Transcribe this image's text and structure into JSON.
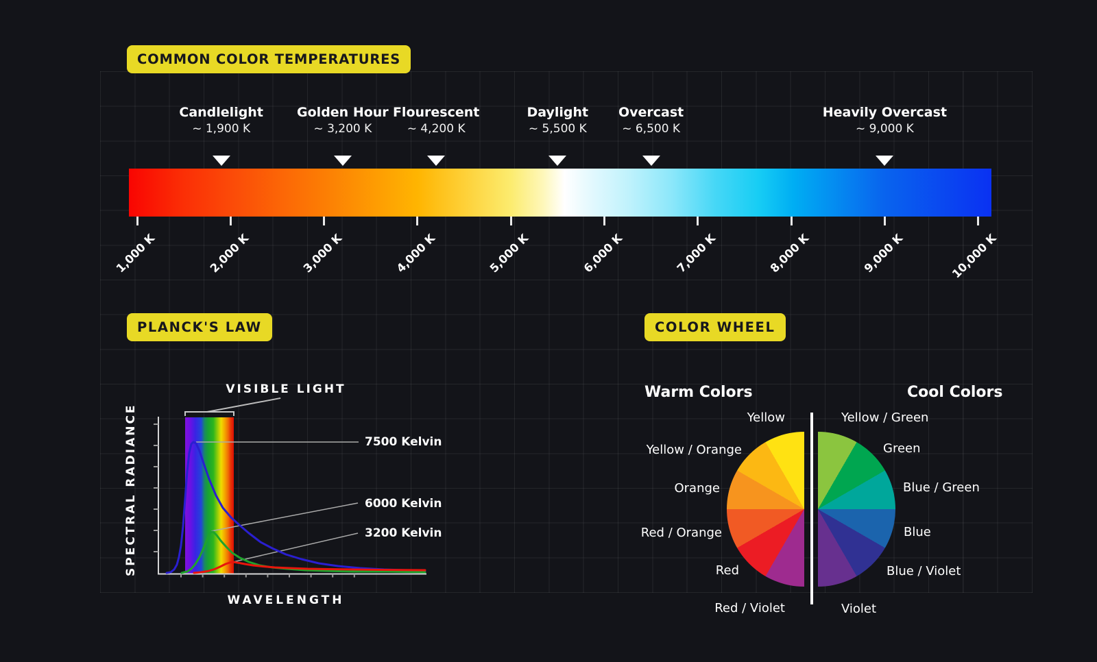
{
  "kelvin_scale": {
    "title": "COMMON COLOR TEMPERATURES",
    "axis_ticks": [
      "1,000 K",
      "2,000 K",
      "3,000 K",
      "4,000 K",
      "5,000 K",
      "6,000 K",
      "7,000 K",
      "8,000 K",
      "9,000 K",
      "10,000 K"
    ],
    "axis_tick_values": [
      1000,
      2000,
      3000,
      4000,
      5000,
      6000,
      7000,
      8000,
      9000,
      10000
    ],
    "markers": [
      {
        "name": "Candlelight",
        "value_label": "~ 1,900 K",
        "kelvin": 1900
      },
      {
        "name": "Golden Hour",
        "value_label": "~ 3,200 K",
        "kelvin": 3200
      },
      {
        "name": "Flourescent",
        "value_label": "~ 4,200 K",
        "kelvin": 4200
      },
      {
        "name": "Daylight",
        "value_label": "~ 5,500 K",
        "kelvin": 5500
      },
      {
        "name": "Overcast",
        "value_label": "~ 6,500 K",
        "kelvin": 6500
      },
      {
        "name": "Heavily Overcast",
        "value_label": "~ 9,000 K",
        "kelvin": 9000
      }
    ],
    "gradient_stops": [
      [
        0,
        "#F90502"
      ],
      [
        6,
        "#FB2D05"
      ],
      [
        11.8,
        "#FB4A08"
      ],
      [
        22.7,
        "#FC7E04"
      ],
      [
        33.5,
        "#FFB501"
      ],
      [
        44.3,
        "#FCEC6F"
      ],
      [
        48,
        "#FEF7B9"
      ],
      [
        50.5,
        "#FFFFFF"
      ],
      [
        53.5,
        "#E4F9FE"
      ],
      [
        58,
        "#BFF2FC"
      ],
      [
        63,
        "#8BE7FA"
      ],
      [
        68,
        "#46D7F6"
      ],
      [
        73,
        "#17CDF4"
      ],
      [
        77,
        "#00AEF3"
      ],
      [
        87.5,
        "#0964EE"
      ],
      [
        100,
        "#0A31F2"
      ]
    ]
  },
  "planck": {
    "title": "PLANCK'S LAW",
    "visible_light_label": "VISIBLE LIGHT",
    "y_axis_label": "SPECTRAL RADIANCE",
    "x_axis_label": "WAVELENGTH",
    "spectrum_stops": [
      [
        0,
        "#7F12DC"
      ],
      [
        10,
        "#6D10E4"
      ],
      [
        21,
        "#3A23E4"
      ],
      [
        33,
        "#2145D8"
      ],
      [
        40,
        "#1A8A60"
      ],
      [
        47,
        "#17A233"
      ],
      [
        58,
        "#2DB51E"
      ],
      [
        66,
        "#8CCB0A"
      ],
      [
        74,
        "#EFDC00"
      ],
      [
        81,
        "#F4A800"
      ],
      [
        88,
        "#F07004"
      ],
      [
        93,
        "#E83A06"
      ],
      [
        100,
        "#DE0D04"
      ]
    ]
  },
  "chart_data": {
    "type": "line",
    "title": "PLANCK'S LAW",
    "xlabel": "WAVELENGTH",
    "ylabel": "SPECTRAL RADIANCE",
    "axes_numeric_labels": false,
    "series": [
      {
        "name": "7500 Kelvin",
        "color": "#2A1FD0",
        "points": [
          [
            28,
            236
          ],
          [
            34,
            235
          ],
          [
            39,
            231
          ],
          [
            43,
            224
          ],
          [
            46,
            213
          ],
          [
            49,
            196
          ],
          [
            52,
            168
          ],
          [
            55,
            128
          ],
          [
            58,
            88
          ],
          [
            61,
            61
          ],
          [
            64,
            48
          ],
          [
            67,
            45
          ],
          [
            71,
            47
          ],
          [
            76,
            58
          ],
          [
            82,
            76
          ],
          [
            90,
            99
          ],
          [
            100,
            123
          ],
          [
            110,
            141
          ],
          [
            122,
            155
          ],
          [
            134,
            166
          ],
          [
            148,
            178
          ],
          [
            165,
            191
          ],
          [
            182,
            200
          ],
          [
            202,
            209
          ],
          [
            225,
            216
          ],
          [
            250,
            222
          ],
          [
            278,
            226
          ],
          [
            310,
            229
          ],
          [
            345,
            231
          ],
          [
            375,
            232
          ],
          [
            405,
            233
          ]
        ]
      },
      {
        "name": "6000 Kelvin",
        "color": "#1FA32C",
        "points": [
          [
            50,
            236
          ],
          [
            58,
            234
          ],
          [
            64,
            230
          ],
          [
            70,
            223
          ],
          [
            76,
            213
          ],
          [
            81,
            202
          ],
          [
            86,
            190
          ],
          [
            90,
            180
          ],
          [
            93,
            176
          ],
          [
            96,
            176
          ],
          [
            101,
            181
          ],
          [
            107,
            189
          ],
          [
            115,
            198
          ],
          [
            124,
            207
          ],
          [
            135,
            214
          ],
          [
            148,
            220
          ],
          [
            164,
            225
          ],
          [
            182,
            228
          ],
          [
            204,
            230
          ],
          [
            230,
            232
          ],
          [
            260,
            233
          ],
          [
            300,
            234
          ],
          [
            350,
            234
          ],
          [
            405,
            235
          ]
        ]
      },
      {
        "name": "3200 Kelvin",
        "color": "#E8150C",
        "points": [
          [
            68,
            236
          ],
          [
            78,
            235
          ],
          [
            88,
            233.5
          ],
          [
            98,
            230.5
          ],
          [
            106,
            227
          ],
          [
            114,
            223
          ],
          [
            120,
            221
          ],
          [
            124,
            220
          ],
          [
            128,
            220.5
          ],
          [
            134,
            221.5
          ],
          [
            142,
            223
          ],
          [
            154,
            225
          ],
          [
            168,
            226.5
          ],
          [
            186,
            228
          ],
          [
            208,
            229
          ],
          [
            234,
            230
          ],
          [
            265,
            230.5
          ],
          [
            300,
            231
          ],
          [
            340,
            231.5
          ],
          [
            405,
            232
          ]
        ]
      }
    ]
  },
  "color_wheel": {
    "title": "COLOR WHEEL",
    "warm_heading": "Warm Colors",
    "cool_heading": "Cool Colors",
    "warm": [
      {
        "label": "Yellow",
        "color": "#FFE212"
      },
      {
        "label": "Yellow / Orange",
        "color": "#FCB813"
      },
      {
        "label": "Orange",
        "color": "#F7941E"
      },
      {
        "label": "Red / Orange",
        "color": "#F15A24"
      },
      {
        "label": "Red",
        "color": "#EC1C24"
      },
      {
        "label": "Red / Violet",
        "color": "#9E2B8F"
      }
    ],
    "cool": [
      {
        "label": "Yellow / Green",
        "color": "#8BC53F"
      },
      {
        "label": "Green",
        "color": "#00A650"
      },
      {
        "label": "Blue / Green",
        "color": "#00A79B"
      },
      {
        "label": "Blue",
        "color": "#1B64AD"
      },
      {
        "label": "Blue / Violet",
        "color": "#303193"
      },
      {
        "label": "Violet",
        "color": "#67308F"
      }
    ]
  }
}
